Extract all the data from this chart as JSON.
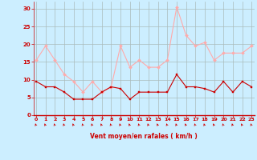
{
  "x": [
    0,
    1,
    2,
    3,
    4,
    5,
    6,
    7,
    8,
    9,
    10,
    11,
    12,
    13,
    14,
    15,
    16,
    17,
    18,
    19,
    20,
    21,
    22,
    23
  ],
  "wind_avg": [
    9.5,
    8,
    8,
    6.5,
    4.5,
    4.5,
    4.5,
    6.5,
    8,
    7.5,
    4.5,
    6.5,
    6.5,
    6.5,
    6.5,
    11.5,
    8,
    8,
    7.5,
    6.5,
    9.5,
    6.5,
    9.5,
    8
  ],
  "wind_gust": [
    15.5,
    19.5,
    15.5,
    11.5,
    9.5,
    6.5,
    9.5,
    6.5,
    8,
    19.5,
    13.5,
    15.5,
    13.5,
    13.5,
    15.5,
    30.5,
    22.5,
    19.5,
    20.5,
    15.5,
    17.5,
    17.5,
    17.5,
    19.5
  ],
  "xlabel": "Vent moyen/en rafales ( km/h )",
  "ylim": [
    0,
    32
  ],
  "xlim": [
    -0.3,
    23.3
  ],
  "yticks": [
    0,
    5,
    10,
    15,
    20,
    25,
    30
  ],
  "xticks": [
    0,
    1,
    2,
    3,
    4,
    5,
    6,
    7,
    8,
    9,
    10,
    11,
    12,
    13,
    14,
    15,
    16,
    17,
    18,
    19,
    20,
    21,
    22,
    23
  ],
  "bg_color": "#cceeff",
  "grid_color": "#aabbbb",
  "avg_color": "#cc0000",
  "gust_color": "#ffaaaa",
  "xlabel_color": "#cc0000",
  "tick_color": "#cc0000"
}
